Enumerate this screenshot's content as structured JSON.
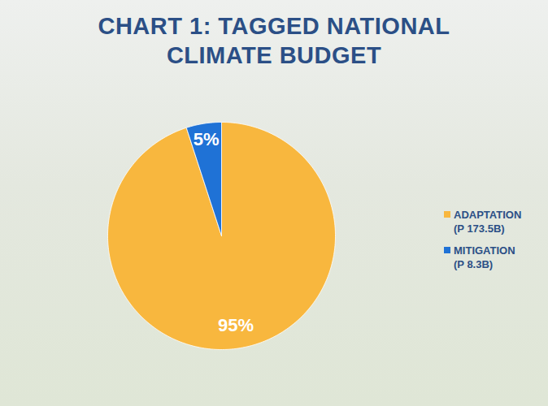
{
  "chart_data": {
    "type": "pie",
    "title": "CHART 1: TAGGED NATIONAL CLIMATE BUDGET",
    "categories": [
      "ADAPTATION (P 173.5B)",
      "MITIGATION (P 8.3B)"
    ],
    "values": [
      95,
      5
    ],
    "value_labels": [
      "95%",
      "5%"
    ],
    "colors": [
      "#f8b73e",
      "#1f72d6"
    ],
    "data_labels": true,
    "legend": "right"
  }
}
